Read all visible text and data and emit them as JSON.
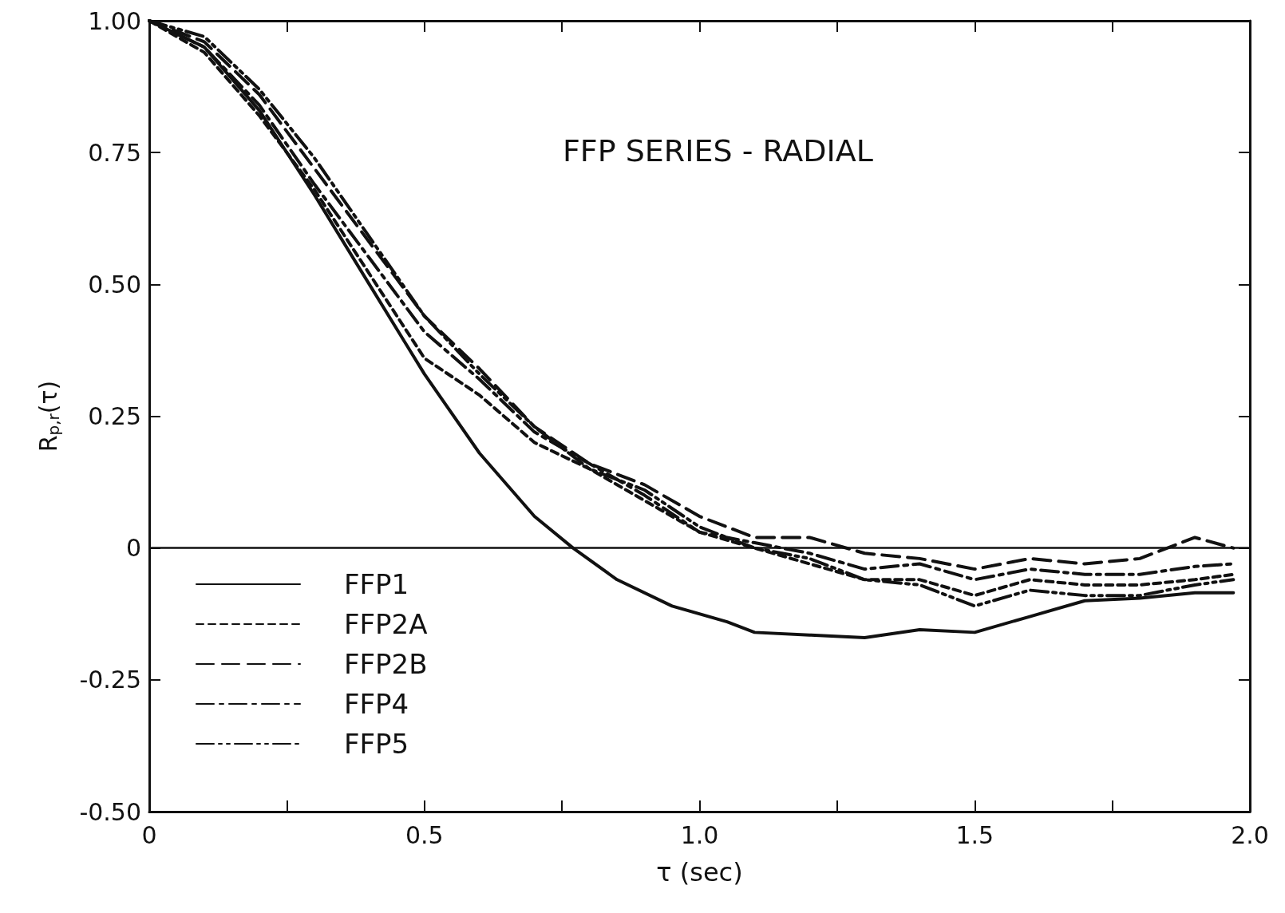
{
  "chart_data": {
    "type": "line",
    "title": "FFP SERIES - RADIAL",
    "xlabel": "τ (sec)",
    "ylabel": "R$_{p,r}$(τ)",
    "x": [
      0,
      0.1,
      0.2,
      0.3,
      0.4,
      0.5,
      0.6,
      0.7,
      0.8,
      0.9,
      1.0,
      1.1,
      1.2,
      1.3,
      1.4,
      1.5,
      1.6,
      1.7,
      1.8,
      1.9,
      1.97
    ],
    "series": [
      {
        "name": "FFP1",
        "color": "#111111",
        "line_style": "solid",
        "x": [
          0,
          0.1,
          0.2,
          0.3,
          0.4,
          0.5,
          0.6,
          0.7,
          0.77,
          0.85,
          0.95,
          1.05,
          1.1,
          1.2,
          1.3,
          1.4,
          1.5,
          1.6,
          1.7,
          1.8,
          1.9,
          1.97
        ],
        "values": [
          1,
          0.95,
          0.83,
          0.67,
          0.5,
          0.33,
          0.18,
          0.06,
          0,
          -0.06,
          -0.11,
          -0.14,
          -0.16,
          -0.165,
          -0.17,
          -0.155,
          -0.16,
          -0.13,
          -0.1,
          -0.095,
          -0.085,
          -0.085
        ]
      },
      {
        "name": "FFP2A",
        "color": "#111111",
        "line_style": "dotted",
        "values": [
          1,
          0.94,
          0.82,
          0.68,
          0.52,
          0.36,
          0.29,
          0.2,
          0.15,
          0.09,
          0.03,
          0,
          -0.03,
          -0.06,
          -0.06,
          -0.09,
          -0.06,
          -0.07,
          -0.07,
          -0.06,
          -0.05
        ]
      },
      {
        "name": "FFP2B",
        "color": "#111111",
        "line_style": "dashed",
        "values": [
          1,
          0.96,
          0.86,
          0.72,
          0.58,
          0.44,
          0.34,
          0.23,
          0.16,
          0.12,
          0.06,
          0.02,
          0.02,
          -0.01,
          -0.02,
          -0.04,
          -0.02,
          -0.03,
          -0.02,
          0.02,
          0
        ]
      },
      {
        "name": "FFP4",
        "color": "#111111",
        "line_style": "dashdot",
        "values": [
          1,
          0.95,
          0.84,
          0.69,
          0.55,
          0.41,
          0.32,
          0.22,
          0.16,
          0.1,
          0.03,
          0.01,
          -0.01,
          -0.04,
          -0.03,
          -0.06,
          -0.04,
          -0.05,
          -0.05,
          -0.035,
          -0.03
        ]
      },
      {
        "name": "FFP5",
        "color": "#111111",
        "line_style": "dashdotdot",
        "values": [
          1,
          0.97,
          0.87,
          0.74,
          0.59,
          0.44,
          0.33,
          0.23,
          0.15,
          0.11,
          0.04,
          0,
          -0.02,
          -0.06,
          -0.07,
          -0.11,
          -0.08,
          -0.09,
          -0.09,
          -0.07,
          -0.06
        ]
      }
    ],
    "xlim": [
      0,
      2.0
    ],
    "xticks": [
      0,
      {
        "value": 0.25,
        "label": null
      },
      {
        "value": 0.5,
        "label": "0.5"
      },
      {
        "value": 0.75,
        "label": null
      },
      {
        "value": 1,
        "label": "1.0"
      },
      {
        "value": 1.25,
        "label": null
      },
      {
        "value": 1.5,
        "label": "1.5"
      },
      {
        "value": 1.75,
        "label": null
      },
      {
        "value": 2,
        "label": "2.0"
      }
    ],
    "ylim": [
      -0.5,
      1.0
    ],
    "yticks": [
      {
        "value": -0.5,
        "label": "-0.50"
      },
      {
        "value": -0.25,
        "label": "-0.25"
      },
      0,
      {
        "value": 0.25,
        "label": "0.25"
      },
      {
        "value": 0.5,
        "label": "0.50"
      },
      {
        "value": 0.75,
        "label": "0.75"
      },
      {
        "value": 1,
        "label": "1.00"
      }
    ],
    "ref_lines": [
      {
        "axis": "y",
        "value": 0,
        "color": "#111111",
        "line_style": "solid"
      }
    ],
    "grid": false,
    "legend": "bottom left",
    "marker": "none"
  }
}
